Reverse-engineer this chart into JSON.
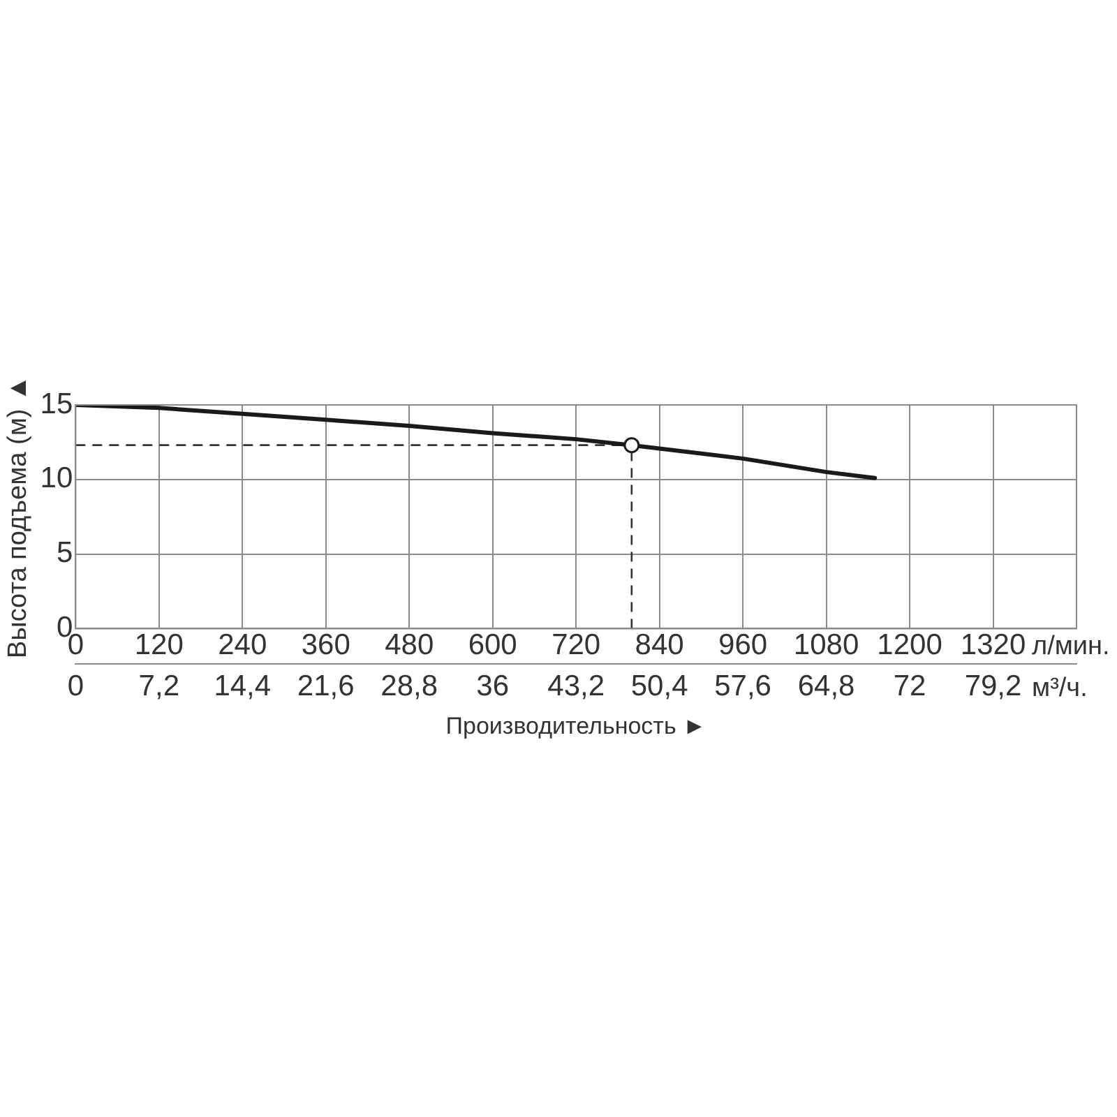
{
  "chart_data": {
    "type": "line",
    "xlabel": "Производительность ►",
    "ylabel": "Высота подъема (м) ▲",
    "series": [
      {
        "color": "#1a1a1a",
        "x": [
          0,
          120,
          240,
          360,
          480,
          600,
          720,
          800,
          960,
          1080,
          1150
        ],
        "values": [
          15,
          14.8,
          14.4,
          14.0,
          13.6,
          13.1,
          12.7,
          12.3,
          11.4,
          10.5,
          10.1
        ]
      },
      {
        "type": "scatter",
        "color": "#1a1a1a",
        "marker": "circle",
        "x": [
          800
        ],
        "values": [
          12.3
        ]
      }
    ],
    "xlim": [
      0,
      1440
    ],
    "xticks": [
      0,
      120,
      240,
      360,
      480,
      600,
      720,
      840,
      960,
      1080,
      1200,
      1320
    ],
    "x2lim": [
      0,
      86.4
    ],
    "x2ticks": [
      0,
      {
        "value": 7.2,
        "label": "7,2"
      },
      {
        "value": 14.4,
        "label": "14,4"
      },
      {
        "value": 21.6,
        "label": "21,6"
      },
      {
        "value": 28.8,
        "label": "28,8"
      },
      36,
      {
        "value": 43.2,
        "label": "43,2"
      },
      {
        "value": 50.4,
        "label": "50,4"
      },
      {
        "value": 57.6,
        "label": "57,6"
      },
      {
        "value": 64.8,
        "label": "64,8"
      },
      72,
      {
        "value": 79.2,
        "label": "79,2"
      }
    ],
    "ylim": [
      0,
      15
    ],
    "yticks": [
      0,
      5,
      10,
      15
    ],
    "ref_lines": [
      {
        "axis": "y",
        "value": 12.3,
        "line_style": "dashed"
      },
      {
        "axis": "x",
        "value": 800,
        "line_style": "dashed"
      }
    ],
    "annotations": [
      "л/мин.",
      "м³/ч."
    ],
    "grid": true,
    "legend": false
  }
}
